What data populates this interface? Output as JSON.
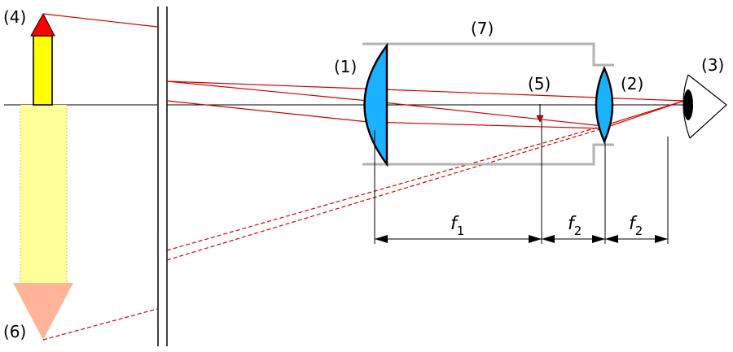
{
  "labels": {
    "objective_lens": "(1)",
    "eyepiece_lens": "(2)",
    "eye": "(3)",
    "object": "(4)",
    "focal_point": "(5)",
    "virtual_image": "(6)",
    "tube": "(7)"
  },
  "dimensions": {
    "f1": {
      "symbol": "f",
      "subscript": "1"
    },
    "f2_left": {
      "symbol": "f",
      "subscript": "2"
    },
    "f2_right": {
      "symbol": "f",
      "subscript": "2"
    }
  },
  "colors": {
    "ray": "#d40000",
    "lens": "#1ab2ff",
    "tube": "#b3b3b3",
    "object_body": "#ffff00",
    "object_head": "#ff0000",
    "image_body": "#ffff99",
    "image_head": "#ffb399"
  }
}
